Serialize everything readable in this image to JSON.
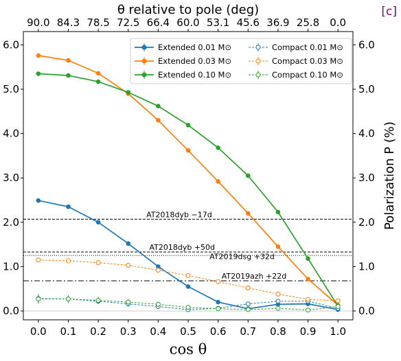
{
  "panel_label": "[c]",
  "colors": {
    "panel_label": "#800080",
    "blue": "#1f77b4",
    "orange": "#ff7f0e",
    "green": "#2ca02c"
  },
  "chart_data": {
    "type": "line",
    "xlabel": "cos θ",
    "top_xlabel": "θ relative to pole (deg)",
    "ylabel": "Polarization P (%)",
    "xlim": [
      -0.05,
      1.05
    ],
    "ylim": [
      -0.2,
      6.3
    ],
    "x": [
      0.0,
      0.1,
      0.2,
      0.3,
      0.4,
      0.5,
      0.6,
      0.7,
      0.8,
      0.9,
      1.0
    ],
    "x_tick_labels": [
      "0.0",
      "0.1",
      "0.2",
      "0.3",
      "0.4",
      "0.5",
      "0.6",
      "0.7",
      "0.8",
      "0.9",
      "1.0"
    ],
    "top_tick_labels": [
      "90.0",
      "84.3",
      "78.5",
      "72.5",
      "66.4",
      "60.0",
      "53.1",
      "45.6",
      "36.9",
      "25.8",
      "0.0"
    ],
    "y_ticks": [
      0,
      1,
      2,
      3,
      4,
      5,
      6
    ],
    "y_tick_labels": [
      "0.0",
      "1.0",
      "2.0",
      "3.0",
      "4.0",
      "5.0",
      "6.0"
    ],
    "grid": false,
    "legend_position": "top-right",
    "series": [
      {
        "name": "Extended 0.01 M⊙",
        "style": "solid",
        "color": "#1f77b4",
        "values": [
          2.49,
          2.35,
          2.0,
          1.52,
          1.0,
          0.55,
          0.2,
          0.05,
          0.15,
          0.16,
          0.03
        ]
      },
      {
        "name": "Extended 0.03 M⊙",
        "style": "solid",
        "color": "#ff7f0e",
        "values": [
          5.76,
          5.65,
          5.36,
          4.9,
          4.3,
          3.62,
          2.92,
          2.2,
          1.45,
          0.72,
          0.13
        ]
      },
      {
        "name": "Extended 0.10 M⊙",
        "style": "solid",
        "color": "#2ca02c",
        "values": [
          5.35,
          5.31,
          5.17,
          4.93,
          4.62,
          4.19,
          3.68,
          3.05,
          2.23,
          1.18,
          0.11
        ]
      },
      {
        "name": "Compact 0.01 M⊙",
        "style": "dashed",
        "color": "#1f77b4",
        "values": [
          0.28,
          0.27,
          0.22,
          0.16,
          0.1,
          0.03,
          0.06,
          0.16,
          0.22,
          0.22,
          0.06
        ],
        "errors": [
          0.09,
          0.07,
          0.06,
          0.06,
          0.05,
          0.04,
          0.04,
          0.04,
          0.04,
          0.04,
          0.04
        ]
      },
      {
        "name": "Compact 0.03 M⊙",
        "style": "dashed",
        "color": "#ff7f0e",
        "values": [
          1.15,
          1.13,
          1.09,
          1.03,
          0.92,
          0.8,
          0.66,
          0.52,
          0.38,
          0.26,
          0.23
        ]
      },
      {
        "name": "Compact 0.10 M⊙",
        "style": "dashed",
        "color": "#2ca02c",
        "values": [
          0.27,
          0.27,
          0.24,
          0.2,
          0.15,
          0.08,
          0.05,
          0.03,
          0.06,
          0.02,
          0.1
        ],
        "errors": [
          0.11,
          0.09,
          0.08,
          0.07,
          0.06,
          0.05,
          0.04,
          0.04,
          0.04,
          0.04,
          0.04
        ]
      }
    ],
    "reference_lines": [
      {
        "label": "AT2018dyb −17d",
        "y": 2.07,
        "style": "dashed",
        "label_x": 0.47
      },
      {
        "label": "AT2018dyb +50d",
        "y": 1.33,
        "style": "dashed",
        "label_x": 0.48
      },
      {
        "label": "",
        "y": 1.25,
        "style": "dotted"
      },
      {
        "label": "AT2019dsg +32d",
        "y": 1.12,
        "style": "none",
        "label_x": 0.68
      },
      {
        "label": "AT2019azh +22d",
        "y": 0.68,
        "style": "dashdot",
        "label_x": 0.72
      }
    ]
  }
}
